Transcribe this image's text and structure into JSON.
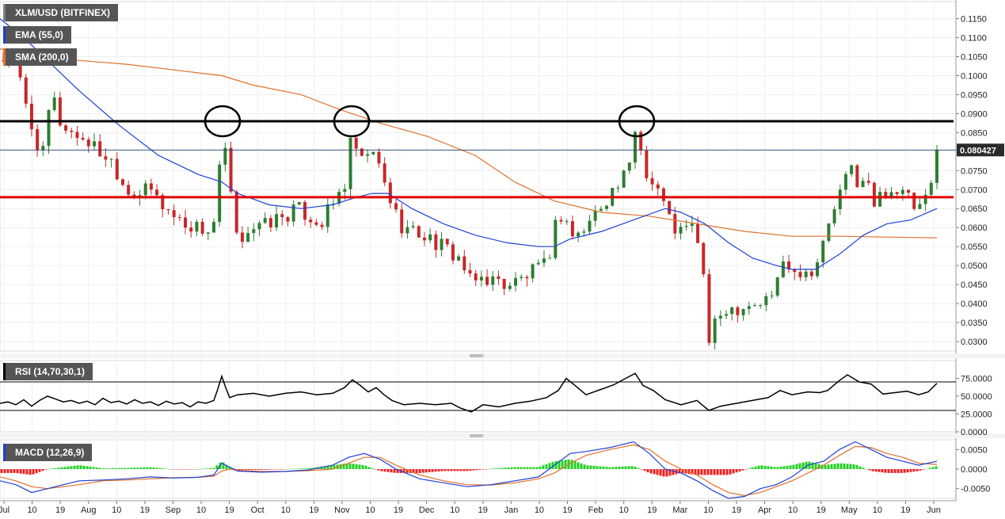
{
  "legends": {
    "pair": "XLM/USD (BITFINEX)",
    "ema": "EMA (55,0)",
    "sma": "SMA (200,0)",
    "rsi": "RSI (14,70,30,1)",
    "macd": "MACD (12,26,9)"
  },
  "colors": {
    "pair": "#7f7f7f",
    "ema": "#1f3fd6",
    "sma": "#e0702a",
    "rsi": "#000000",
    "macd": "#1f3fd6",
    "up": "#2e7d32",
    "down": "#c62828",
    "resistance": "#000000",
    "support": "#e00000",
    "hist_up": "#22d022",
    "hist_down": "#ee2020"
  },
  "price": {
    "current_label": "0.080427",
    "current": 0.080427
  },
  "chart_data": [
    {
      "type": "candlestick",
      "title": "XLM/USD (BITFINEX)",
      "y_ticks": [
        "0.0300",
        "0.0350",
        "0.0400",
        "0.0450",
        "0.0500",
        "0.0550",
        "0.0600",
        "0.0650",
        "0.0700",
        "0.0750",
        "0.0850",
        "0.0900",
        "0.0950",
        "0.1000",
        "0.1050",
        "0.1100",
        "0.1150"
      ],
      "ylim": [
        0.0275,
        0.1195
      ],
      "x_ticks": [
        "Jul",
        "10",
        "19",
        "Aug",
        "10",
        "19",
        "Sep",
        "10",
        "19",
        "Oct",
        "10",
        "19",
        "Nov",
        "10",
        "19",
        "Dec",
        "10",
        "19",
        "Jan",
        "10",
        "19",
        "Feb",
        "10",
        "19",
        "Mar",
        "10",
        "19",
        "Apr",
        "10",
        "19",
        "May",
        "10",
        "19",
        "Jun"
      ],
      "price_path": [
        [
          0,
          0.104
        ],
        [
          10,
          0.105
        ],
        [
          20,
          0.103
        ],
        [
          35,
          0.09
        ],
        [
          45,
          0.083
        ],
        [
          55,
          0.079
        ],
        [
          65,
          0.096
        ],
        [
          75,
          0.088
        ],
        [
          90,
          0.085
        ],
        [
          110,
          0.083
        ],
        [
          125,
          0.08
        ],
        [
          140,
          0.078
        ],
        [
          150,
          0.074
        ],
        [
          160,
          0.07
        ],
        [
          175,
          0.069
        ],
        [
          190,
          0.07
        ],
        [
          205,
          0.066
        ],
        [
          220,
          0.063
        ],
        [
          235,
          0.061
        ],
        [
          250,
          0.06
        ],
        [
          265,
          0.059
        ],
        [
          275,
          0.064
        ],
        [
          280,
          0.089
        ],
        [
          288,
          0.072
        ],
        [
          295,
          0.065
        ],
        [
          300,
          0.054
        ],
        [
          310,
          0.06
        ],
        [
          330,
          0.06
        ],
        [
          345,
          0.062
        ],
        [
          360,
          0.063
        ],
        [
          375,
          0.065
        ],
        [
          390,
          0.063
        ],
        [
          405,
          0.061
        ],
        [
          420,
          0.066
        ],
        [
          435,
          0.071
        ],
        [
          445,
          0.085
        ],
        [
          455,
          0.076
        ],
        [
          465,
          0.08
        ],
        [
          475,
          0.078
        ],
        [
          485,
          0.072
        ],
        [
          495,
          0.066
        ],
        [
          505,
          0.061
        ],
        [
          520,
          0.059
        ],
        [
          535,
          0.058
        ],
        [
          550,
          0.056
        ],
        [
          565,
          0.054
        ],
        [
          580,
          0.052
        ],
        [
          595,
          0.045
        ],
        [
          610,
          0.047
        ],
        [
          625,
          0.046
        ],
        [
          640,
          0.045
        ],
        [
          655,
          0.046
        ],
        [
          670,
          0.048
        ],
        [
          690,
          0.05
        ],
        [
          705,
          0.064
        ],
        [
          715,
          0.062
        ],
        [
          725,
          0.057
        ],
        [
          740,
          0.06
        ],
        [
          755,
          0.065
        ],
        [
          770,
          0.069
        ],
        [
          785,
          0.072
        ],
        [
          795,
          0.076
        ],
        [
          802,
          0.086
        ],
        [
          810,
          0.08
        ],
        [
          820,
          0.072
        ],
        [
          830,
          0.071
        ],
        [
          840,
          0.065
        ],
        [
          850,
          0.06
        ],
        [
          860,
          0.059
        ],
        [
          875,
          0.06
        ],
        [
          885,
          0.055
        ],
        [
          895,
          0.03
        ],
        [
          905,
          0.035
        ],
        [
          915,
          0.039
        ],
        [
          930,
          0.039
        ],
        [
          945,
          0.04
        ],
        [
          960,
          0.04
        ],
        [
          975,
          0.042
        ],
        [
          985,
          0.05
        ],
        [
          995,
          0.051
        ],
        [
          1005,
          0.049
        ],
        [
          1020,
          0.048
        ],
        [
          1035,
          0.052
        ],
        [
          1045,
          0.06
        ],
        [
          1055,
          0.066
        ],
        [
          1065,
          0.071
        ],
        [
          1075,
          0.076
        ],
        [
          1085,
          0.071
        ],
        [
          1095,
          0.072
        ],
        [
          1105,
          0.065
        ],
        [
          1115,
          0.07
        ],
        [
          1130,
          0.07
        ],
        [
          1145,
          0.068
        ],
        [
          1155,
          0.065
        ],
        [
          1165,
          0.065
        ],
        [
          1175,
          0.07
        ],
        [
          1183,
          0.0804
        ]
      ],
      "ema_path": [
        [
          0,
          0.115
        ],
        [
          30,
          0.11
        ],
        [
          60,
          0.104
        ],
        [
          100,
          0.096
        ],
        [
          150,
          0.087
        ],
        [
          200,
          0.079
        ],
        [
          250,
          0.074
        ],
        [
          280,
          0.072
        ],
        [
          300,
          0.069
        ],
        [
          340,
          0.066
        ],
        [
          380,
          0.065
        ],
        [
          420,
          0.066
        ],
        [
          450,
          0.068
        ],
        [
          470,
          0.069
        ],
        [
          490,
          0.069
        ],
        [
          520,
          0.065
        ],
        [
          560,
          0.061
        ],
        [
          600,
          0.058
        ],
        [
          640,
          0.056
        ],
        [
          680,
          0.055
        ],
        [
          700,
          0.055
        ],
        [
          720,
          0.057
        ],
        [
          760,
          0.059
        ],
        [
          800,
          0.062
        ],
        [
          840,
          0.065
        ],
        [
          860,
          0.064
        ],
        [
          890,
          0.061
        ],
        [
          920,
          0.056
        ],
        [
          950,
          0.052
        ],
        [
          980,
          0.05
        ],
        [
          1000,
          0.049
        ],
        [
          1030,
          0.049
        ],
        [
          1060,
          0.053
        ],
        [
          1090,
          0.058
        ],
        [
          1120,
          0.061
        ],
        [
          1150,
          0.062
        ],
        [
          1183,
          0.065
        ]
      ],
      "sma_path": [
        [
          0,
          0.107
        ],
        [
          50,
          0.106
        ],
        [
          100,
          0.104
        ],
        [
          160,
          0.103
        ],
        [
          220,
          0.1015
        ],
        [
          280,
          0.1
        ],
        [
          320,
          0.0975
        ],
        [
          380,
          0.095
        ],
        [
          430,
          0.091
        ],
        [
          480,
          0.0875
        ],
        [
          540,
          0.084
        ],
        [
          600,
          0.079
        ],
        [
          650,
          0.072
        ],
        [
          700,
          0.067
        ],
        [
          760,
          0.064
        ],
        [
          820,
          0.063
        ],
        [
          880,
          0.061
        ],
        [
          940,
          0.059
        ],
        [
          1000,
          0.0577
        ],
        [
          1060,
          0.0577
        ],
        [
          1120,
          0.0575
        ],
        [
          1183,
          0.0573
        ]
      ],
      "resistance": 0.088,
      "support": 0.068,
      "circles_x": [
        281,
        444,
        804
      ]
    },
    {
      "type": "line",
      "title": "RSI (14,70,30,1)",
      "y_ticks": [
        "0.0000",
        "25.0000",
        "50.0000",
        "75.0000"
      ],
      "ylim": [
        0,
        100
      ],
      "levels": [
        70,
        30
      ],
      "x": [
        0,
        10,
        20,
        30,
        40,
        50,
        60,
        70,
        80,
        90,
        100,
        110,
        120,
        130,
        140,
        150,
        160,
        170,
        180,
        190,
        200,
        210,
        220,
        230,
        240,
        250,
        260,
        270,
        275,
        280,
        285,
        290,
        300,
        320,
        340,
        360,
        380,
        400,
        420,
        435,
        445,
        455,
        465,
        475,
        485,
        495,
        510,
        530,
        550,
        570,
        580,
        595,
        610,
        630,
        650,
        670,
        690,
        705,
        715,
        725,
        740,
        760,
        775,
        790,
        802,
        812,
        825,
        840,
        860,
        880,
        895,
        910,
        930,
        950,
        970,
        985,
        1000,
        1020,
        1035,
        1045,
        1060,
        1070,
        1085,
        1100,
        1115,
        1130,
        1145,
        1160,
        1172,
        1183
      ],
      "values": [
        40,
        42,
        38,
        45,
        36,
        44,
        50,
        46,
        42,
        44,
        40,
        43,
        38,
        47,
        41,
        43,
        39,
        45,
        40,
        42,
        37,
        43,
        39,
        41,
        35,
        42,
        40,
        44,
        60,
        78,
        62,
        48,
        52,
        54,
        50,
        54,
        56,
        52,
        54,
        62,
        73,
        65,
        56,
        62,
        52,
        44,
        38,
        40,
        38,
        40,
        34,
        28,
        38,
        35,
        40,
        43,
        48,
        58,
        75,
        66,
        52,
        60,
        66,
        75,
        82,
        65,
        58,
        45,
        38,
        44,
        30,
        36,
        40,
        44,
        48,
        58,
        52,
        56,
        55,
        58,
        72,
        80,
        70,
        67,
        53,
        55,
        57,
        52,
        56,
        68
      ]
    },
    {
      "type": "macd",
      "title": "MACD (12,26,9)",
      "y_ticks": [
        "0.0050",
        "0.0000",
        "-0.0050"
      ],
      "ylim": [
        -0.0075,
        0.0075
      ],
      "x": [
        0,
        20,
        40,
        60,
        80,
        100,
        130,
        160,
        190,
        220,
        250,
        270,
        280,
        290,
        300,
        330,
        360,
        390,
        420,
        440,
        460,
        480,
        500,
        530,
        560,
        590,
        620,
        650,
        680,
        700,
        720,
        740,
        770,
        800,
        820,
        840,
        860,
        880,
        900,
        920,
        940,
        960,
        980,
        1000,
        1020,
        1040,
        1060,
        1080,
        1100,
        1120,
        1140,
        1160,
        1183
      ],
      "macd": [
        -0.003,
        -0.004,
        -0.006,
        -0.005,
        -0.004,
        -0.003,
        -0.0028,
        -0.0025,
        -0.002,
        -0.0023,
        -0.0021,
        -0.0015,
        0.0015,
        0.0005,
        -0.0005,
        -0.0008,
        -0.0006,
        -0.0002,
        0.001,
        0.003,
        0.004,
        0.0025,
        0.0,
        -0.0025,
        -0.0035,
        -0.0045,
        -0.004,
        -0.003,
        -0.002,
        0.001,
        0.004,
        0.0045,
        0.0055,
        0.007,
        0.004,
        0.0,
        -0.001,
        -0.003,
        -0.0055,
        -0.0075,
        -0.007,
        -0.005,
        -0.004,
        -0.002,
        0.001,
        0.002,
        0.005,
        0.007,
        0.005,
        0.003,
        0.002,
        0.001,
        0.002
      ],
      "signal": [
        -0.002,
        -0.003,
        -0.0045,
        -0.005,
        -0.0045,
        -0.004,
        -0.003,
        -0.0028,
        -0.0025,
        -0.0022,
        -0.0021,
        -0.0018,
        -0.0005,
        0.0,
        -0.0003,
        -0.0006,
        -0.0006,
        -0.0004,
        0.0,
        0.0015,
        0.003,
        0.003,
        0.001,
        -0.0015,
        -0.003,
        -0.004,
        -0.0041,
        -0.0035,
        -0.0025,
        -0.001,
        0.0015,
        0.0035,
        0.005,
        0.0062,
        0.005,
        0.002,
        0.0,
        -0.0015,
        -0.004,
        -0.006,
        -0.0068,
        -0.006,
        -0.0045,
        -0.003,
        -0.001,
        0.001,
        0.0035,
        0.0058,
        0.0055,
        0.004,
        0.003,
        0.0015,
        0.0012
      ],
      "histogram": [
        -0.001,
        -0.001,
        -0.0015,
        0.0,
        0.0005,
        0.001,
        0.0002,
        0.0003,
        0.0005,
        -0.0001,
        0.0,
        0.0003,
        0.002,
        0.0005,
        -0.0002,
        -0.0002,
        0.0,
        0.0002,
        0.001,
        0.0015,
        0.001,
        -0.0005,
        -0.001,
        -0.001,
        -0.0005,
        -0.0005,
        0.0001,
        0.0005,
        0.0005,
        0.002,
        0.0025,
        0.001,
        0.0005,
        0.0008,
        -0.001,
        -0.002,
        -0.001,
        -0.0015,
        -0.0015,
        -0.0015,
        -0.0002,
        0.001,
        0.0005,
        0.001,
        0.002,
        0.001,
        0.0015,
        0.0012,
        -0.0005,
        -0.001,
        -0.001,
        -0.0005,
        0.0008
      ]
    }
  ]
}
